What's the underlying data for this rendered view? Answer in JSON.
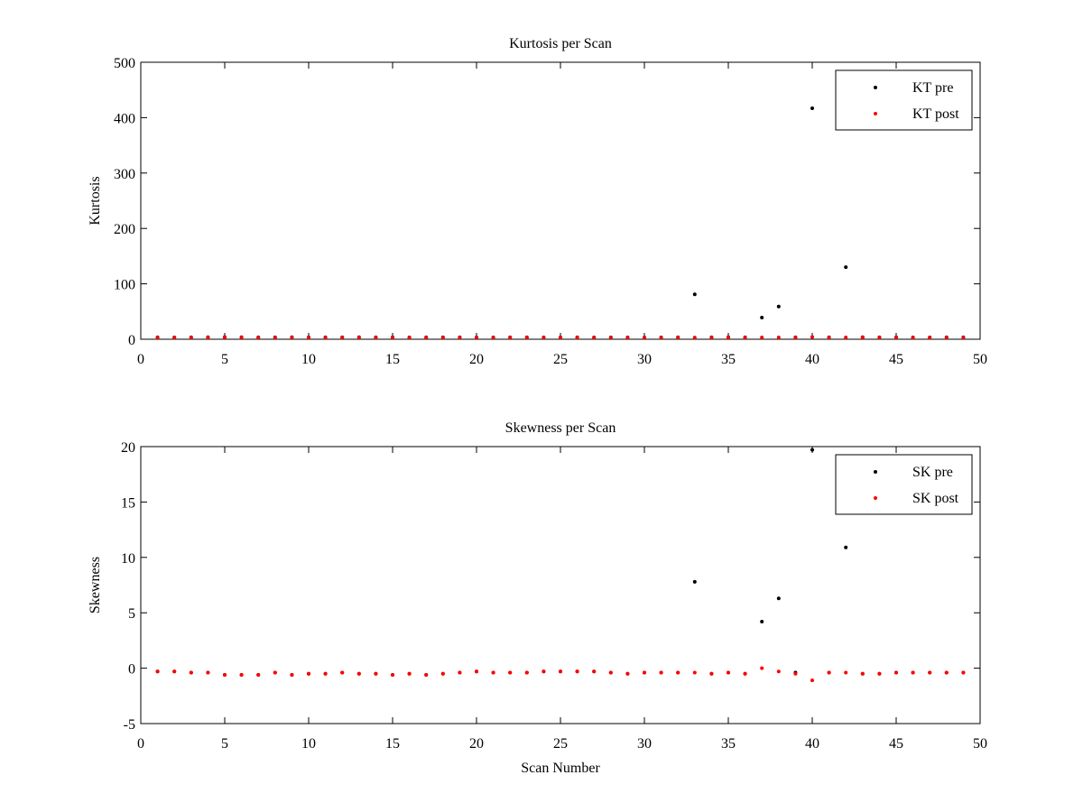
{
  "figure": {
    "background": "#ffffff"
  },
  "chart_data": [
    {
      "type": "scatter",
      "title": "Kurtosis per Scan",
      "xlabel": "",
      "ylabel": "Kurtosis",
      "xlim": [
        0,
        50
      ],
      "ylim": [
        0,
        500
      ],
      "xticks": [
        0,
        5,
        10,
        15,
        20,
        25,
        30,
        35,
        40,
        45,
        50
      ],
      "yticks": [
        0,
        100,
        200,
        300,
        400,
        500
      ],
      "grid": false,
      "legend_position": "top-right",
      "series": [
        {
          "name": "KT pre",
          "color": "#000000",
          "x": [
            1,
            2,
            3,
            4,
            5,
            6,
            7,
            8,
            9,
            10,
            11,
            12,
            13,
            14,
            15,
            16,
            17,
            18,
            19,
            20,
            21,
            22,
            23,
            24,
            25,
            26,
            27,
            28,
            29,
            30,
            31,
            32,
            33,
            34,
            35,
            36,
            37,
            38,
            39,
            40,
            41,
            42,
            43,
            44,
            45,
            46,
            47,
            48,
            49
          ],
          "y": [
            3.5,
            3.2,
            3.4,
            3.6,
            3.8,
            3.7,
            3.5,
            3.4,
            3.6,
            3.5,
            3.4,
            3.5,
            3.6,
            3.4,
            3.5,
            3.3,
            3.4,
            3.5,
            3.4,
            3.2,
            3.3,
            3.4,
            3.5,
            3.2,
            3.3,
            3.4,
            3.2,
            3.3,
            3.2,
            3.1,
            3.3,
            3.4,
            81,
            3.5,
            3.6,
            3.5,
            39,
            59,
            3.4,
            417,
            3.5,
            130,
            3.6,
            3.5,
            3.4,
            3.3,
            3.2,
            3.4,
            3.5
          ]
        },
        {
          "name": "KT post",
          "color": "#ff0000",
          "x": [
            1,
            2,
            3,
            4,
            5,
            6,
            7,
            8,
            9,
            10,
            11,
            12,
            13,
            14,
            15,
            16,
            17,
            18,
            19,
            20,
            21,
            22,
            23,
            24,
            25,
            26,
            27,
            28,
            29,
            30,
            31,
            32,
            33,
            34,
            35,
            36,
            37,
            38,
            39,
            40,
            41,
            42,
            43,
            44,
            45,
            46,
            47,
            48,
            49
          ],
          "y": [
            3.0,
            2.8,
            3.0,
            3.2,
            3.4,
            3.3,
            3.1,
            3.0,
            3.2,
            3.1,
            3.0,
            3.1,
            3.2,
            3.0,
            3.1,
            2.9,
            3.0,
            3.1,
            3.0,
            2.8,
            2.9,
            3.0,
            3.1,
            2.8,
            2.9,
            3.0,
            2.8,
            2.9,
            2.8,
            2.7,
            2.9,
            3.0,
            3.1,
            3.1,
            3.2,
            3.1,
            3.3,
            3.2,
            3.0,
            4.0,
            3.1,
            3.2,
            3.2,
            3.1,
            3.0,
            2.9,
            2.8,
            3.0,
            3.1
          ]
        }
      ]
    },
    {
      "type": "scatter",
      "title": "Skewness per Scan",
      "xlabel": "Scan Number",
      "ylabel": "Skewness",
      "xlim": [
        0,
        50
      ],
      "ylim": [
        -5,
        20
      ],
      "xticks": [
        0,
        5,
        10,
        15,
        20,
        25,
        30,
        35,
        40,
        45,
        50
      ],
      "yticks": [
        -5,
        0,
        5,
        10,
        15,
        20
      ],
      "grid": false,
      "legend_position": "top-right",
      "series": [
        {
          "name": "SK pre",
          "color": "#000000",
          "x": [
            1,
            2,
            3,
            4,
            5,
            6,
            7,
            8,
            9,
            10,
            11,
            12,
            13,
            14,
            15,
            16,
            17,
            18,
            19,
            20,
            21,
            22,
            23,
            24,
            25,
            26,
            27,
            28,
            29,
            30,
            31,
            32,
            33,
            34,
            35,
            36,
            37,
            38,
            39,
            40,
            41,
            42,
            43,
            44,
            45,
            46,
            47,
            48,
            49
          ],
          "y": [
            -0.3,
            -0.3,
            -0.4,
            -0.4,
            -0.6,
            -0.6,
            -0.6,
            -0.4,
            -0.6,
            -0.5,
            -0.5,
            -0.4,
            -0.5,
            -0.5,
            -0.6,
            -0.5,
            -0.6,
            -0.5,
            -0.4,
            -0.3,
            -0.4,
            -0.4,
            -0.4,
            -0.3,
            -0.3,
            -0.3,
            -0.3,
            -0.4,
            -0.5,
            -0.4,
            -0.4,
            -0.4,
            7.8,
            -0.5,
            -0.4,
            -0.5,
            4.2,
            6.3,
            -0.4,
            19.7,
            -0.4,
            10.9,
            -0.5,
            -0.5,
            -0.4,
            -0.4,
            -0.4,
            -0.4,
            -0.4
          ]
        },
        {
          "name": "SK post",
          "color": "#ff0000",
          "x": [
            1,
            2,
            3,
            4,
            5,
            6,
            7,
            8,
            9,
            10,
            11,
            12,
            13,
            14,
            15,
            16,
            17,
            18,
            19,
            20,
            21,
            22,
            23,
            24,
            25,
            26,
            27,
            28,
            29,
            30,
            31,
            32,
            33,
            34,
            35,
            36,
            37,
            38,
            39,
            40,
            41,
            42,
            43,
            44,
            45,
            46,
            47,
            48,
            49
          ],
          "y": [
            -0.3,
            -0.3,
            -0.4,
            -0.4,
            -0.6,
            -0.6,
            -0.6,
            -0.4,
            -0.6,
            -0.5,
            -0.5,
            -0.4,
            -0.5,
            -0.5,
            -0.6,
            -0.5,
            -0.6,
            -0.5,
            -0.4,
            -0.3,
            -0.4,
            -0.4,
            -0.4,
            -0.3,
            -0.3,
            -0.3,
            -0.3,
            -0.4,
            -0.5,
            -0.4,
            -0.4,
            -0.4,
            -0.4,
            -0.5,
            -0.4,
            -0.5,
            0.0,
            -0.3,
            -0.5,
            -1.1,
            -0.4,
            -0.4,
            -0.5,
            -0.5,
            -0.4,
            -0.4,
            -0.4,
            -0.4,
            -0.4
          ]
        }
      ]
    }
  ]
}
